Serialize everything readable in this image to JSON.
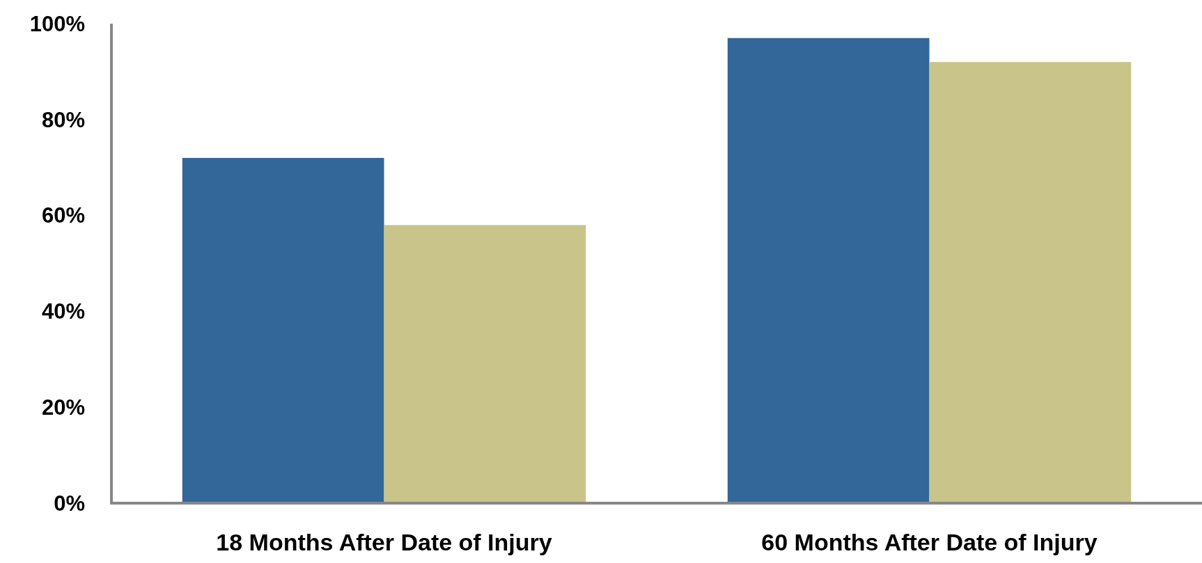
{
  "chart_data": {
    "type": "bar",
    "categories": [
      "18 Months After Date of Injury",
      "60 Months After Date of Injury"
    ],
    "series": [
      {
        "color": "#336699",
        "values": [
          72,
          97
        ]
      },
      {
        "color": "#c9c48a",
        "values": [
          58,
          92
        ]
      }
    ],
    "ylim": [
      0,
      100
    ],
    "yticks": [
      {
        "value": 0,
        "label": "0%"
      },
      {
        "value": 20,
        "label": "20%"
      },
      {
        "value": 40,
        "label": "40%"
      },
      {
        "value": 60,
        "label": "60%"
      },
      {
        "value": 80,
        "label": "80%"
      },
      {
        "value": 100,
        "label": "100%"
      }
    ]
  }
}
